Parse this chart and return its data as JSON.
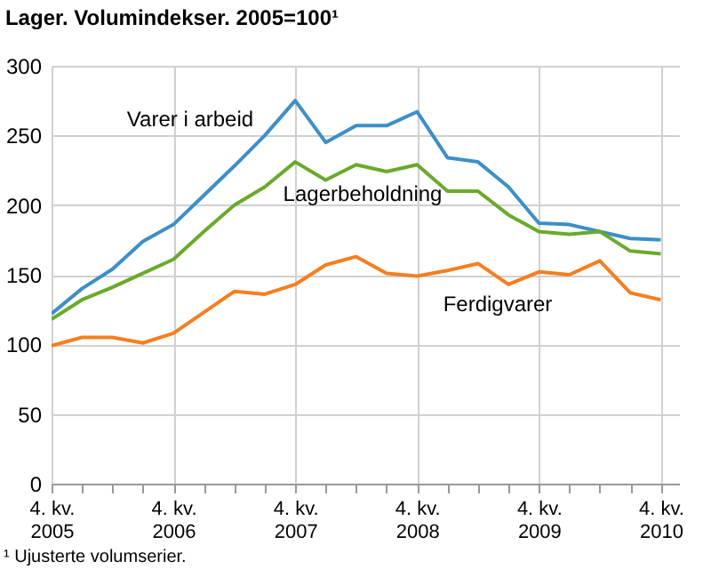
{
  "chart_data": {
    "type": "line",
    "title": "Lager. Volumindekser. 2005=100¹",
    "annotations": [
      "¹ Ujusterte volumserier."
    ],
    "categories": [
      "4. kv. 2005",
      null,
      null,
      null,
      "4. kv. 2006",
      null,
      null,
      null,
      "4. kv. 2007",
      null,
      null,
      null,
      "4. kv. 2008",
      null,
      null,
      null,
      "4. kv. 2009",
      null,
      null,
      null,
      "4. kv. 2010"
    ],
    "series": [
      {
        "name": "Varer i arbeid",
        "color": "#3c8fc8",
        "values": [
          122,
          140,
          154,
          174,
          186,
          207,
          228,
          250,
          275,
          245,
          257,
          257,
          267,
          234,
          231,
          213,
          187,
          186,
          181,
          176,
          175
        ]
      },
      {
        "name": "Lagerbeholdning",
        "color": "#6aaa2a",
        "values": [
          118,
          132,
          141,
          151,
          161,
          181,
          200,
          213,
          231,
          218,
          229,
          224,
          229,
          210,
          210,
          193,
          181,
          179,
          181,
          167,
          165
        ]
      },
      {
        "name": "Ferdigvarer",
        "color": "#f47f20",
        "values": [
          99,
          105,
          105,
          101,
          108,
          123,
          138,
          136,
          143,
          157,
          163,
          151,
          149,
          153,
          158,
          143,
          152,
          150,
          160,
          137,
          132
        ]
      }
    ],
    "ylim": [
      0,
      300
    ],
    "yticks": [
      0,
      50,
      100,
      150,
      200,
      250,
      300
    ],
    "grid": true,
    "legend": false
  }
}
